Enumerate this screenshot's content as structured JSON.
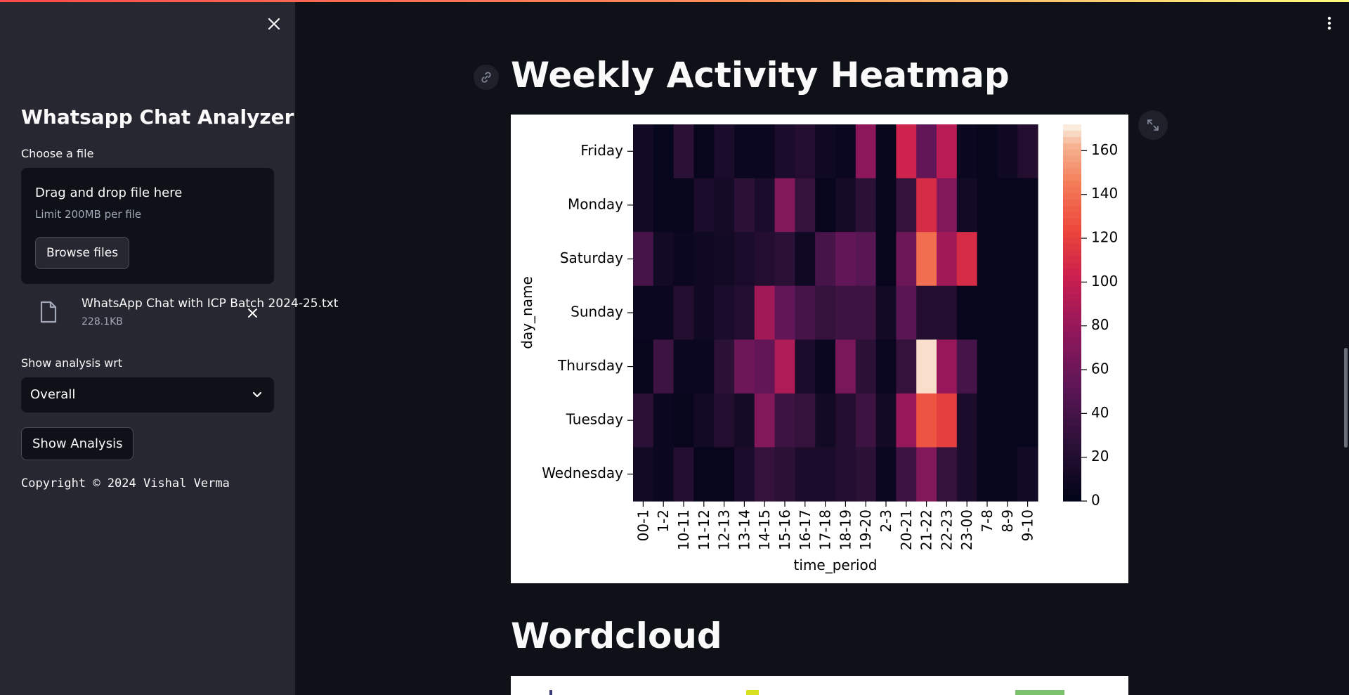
{
  "sidebar": {
    "title": "Whatsapp Chat Analyzer",
    "close_icon": "close-icon",
    "uploader": {
      "label": "Choose a file",
      "drop_title": "Drag and drop file here",
      "limit": "Limit 200MB per file",
      "browse_label": "Browse files",
      "file": {
        "name": "WhatsApp Chat with ICP Batch 2024-25.txt",
        "size": "228.1KB",
        "icon": "file-icon",
        "remove_icon": "close-icon"
      }
    },
    "analysis": {
      "label": "Show analysis wrt",
      "selected": "Overall",
      "chevron_icon": "chevron-down-icon"
    },
    "show_button": "Show Analysis",
    "copyright": "Copyright © 2024 Vishal Verma"
  },
  "main": {
    "menu_icon": "kebab-menu-icon",
    "anchor_icon": "link-icon",
    "expand_icon": "fullscreen-icon",
    "heatmap_title": "Weekly Activity Heatmap",
    "wordcloud_title": "Wordcloud"
  },
  "colors": {
    "accent": "#ff4b4b",
    "sidebar_bg": "#262730",
    "main_bg": "#0e1117"
  },
  "chart_data": {
    "type": "heatmap",
    "xlabel": "time_period",
    "ylabel": "day_name",
    "x": [
      "00-1",
      "1-2",
      "10-11",
      "11-12",
      "12-13",
      "13-14",
      "14-15",
      "15-16",
      "16-17",
      "17-18",
      "18-19",
      "19-20",
      "2-3",
      "20-21",
      "21-22",
      "22-23",
      "23-00",
      "7-8",
      "8-9",
      "9-10"
    ],
    "y": [
      "Friday",
      "Monday",
      "Saturday",
      "Sunday",
      "Thursday",
      "Tuesday",
      "Wednesday"
    ],
    "values": [
      [
        10,
        2,
        25,
        3,
        15,
        5,
        5,
        15,
        20,
        8,
        5,
        75,
        2,
        105,
        55,
        95,
        5,
        2,
        8,
        20
      ],
      [
        10,
        3,
        3,
        15,
        12,
        25,
        15,
        70,
        30,
        3,
        12,
        25,
        2,
        30,
        110,
        70,
        10,
        3,
        3,
        3
      ],
      [
        40,
        10,
        5,
        8,
        10,
        15,
        20,
        25,
        8,
        40,
        55,
        50,
        3,
        60,
        140,
        85,
        110,
        3,
        3,
        3
      ],
      [
        5,
        5,
        20,
        8,
        15,
        20,
        85,
        55,
        40,
        30,
        35,
        35,
        10,
        50,
        20,
        20,
        3,
        3,
        3,
        3
      ],
      [
        3,
        35,
        5,
        5,
        25,
        60,
        55,
        90,
        15,
        5,
        65,
        25,
        5,
        30,
        170,
        80,
        40,
        3,
        3,
        3
      ],
      [
        25,
        5,
        3,
        10,
        20,
        12,
        70,
        35,
        30,
        10,
        20,
        35,
        10,
        80,
        130,
        120,
        15,
        3,
        3,
        3
      ],
      [
        10,
        5,
        20,
        3,
        3,
        15,
        30,
        25,
        15,
        15,
        20,
        25,
        5,
        35,
        70,
        30,
        15,
        3,
        3,
        10
      ]
    ],
    "zlim": [
      0,
      172
    ],
    "colorbar_ticks": [
      0,
      20,
      40,
      60,
      80,
      100,
      120,
      140,
      160
    ],
    "colormap": "rocket",
    "grid": false
  }
}
